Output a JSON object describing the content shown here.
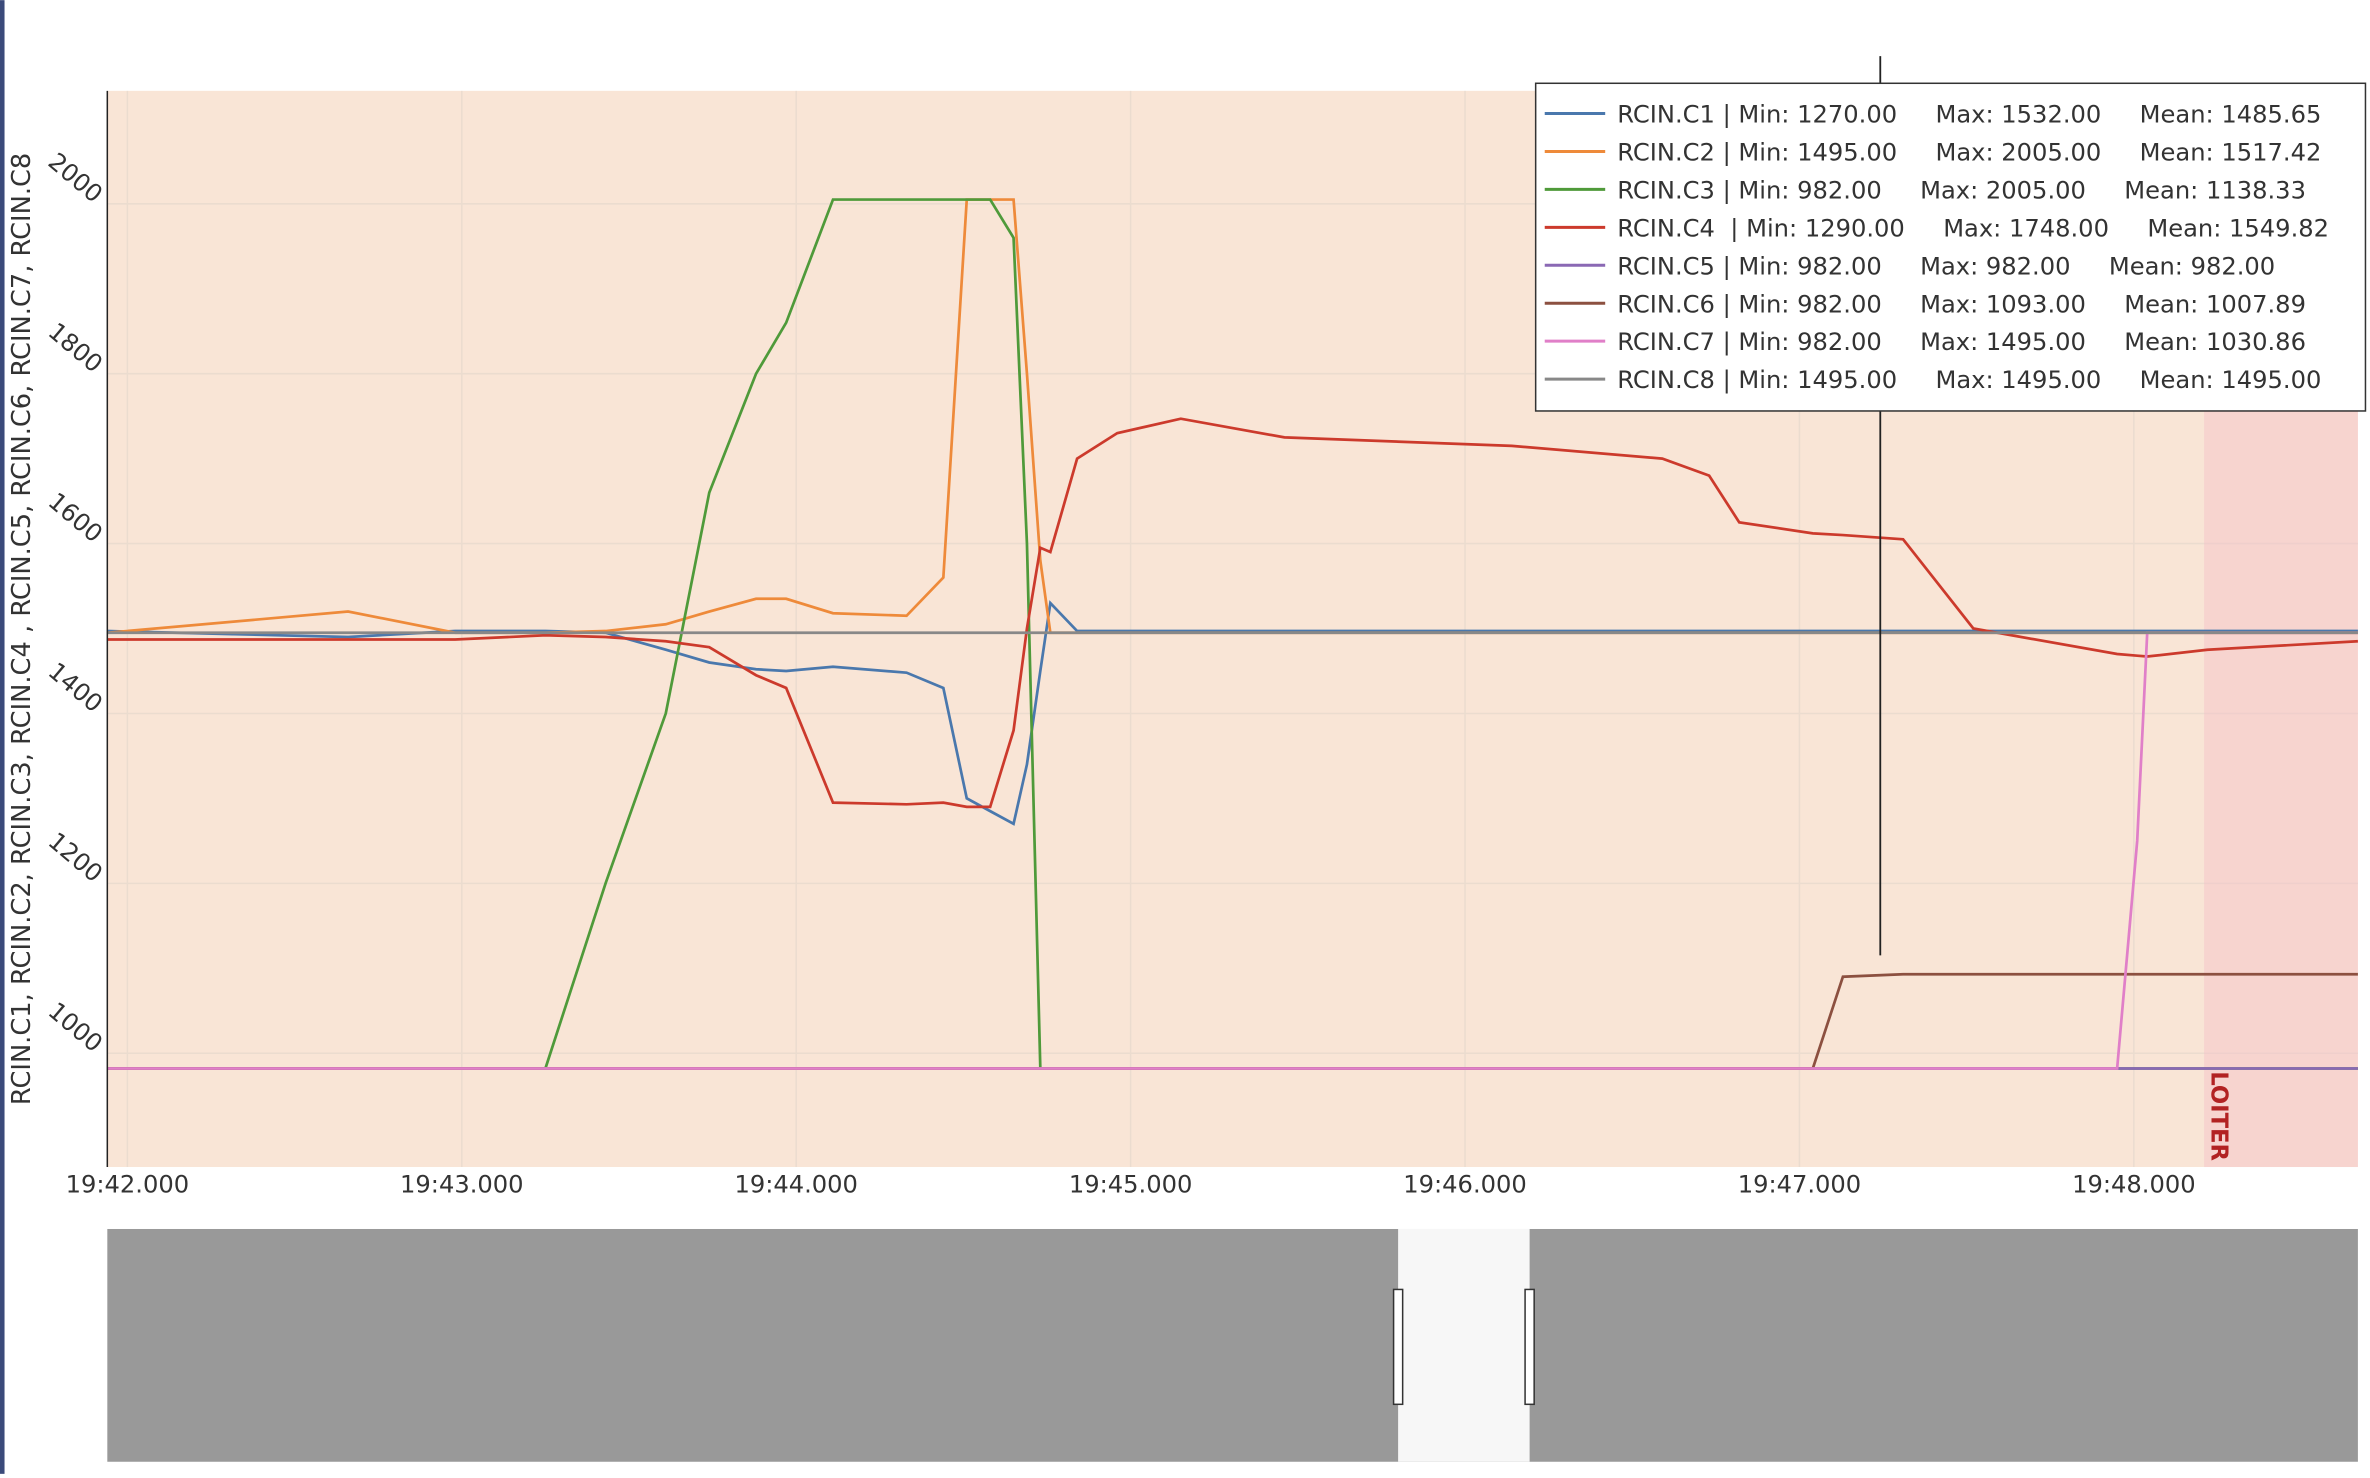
{
  "chart_data": {
    "type": "line",
    "y_label": "RCIN.C1, RCIN.C2, RCIN.C3, RCIN.C4 , RCIN.C5, RCIN.C6, RCIN.C7, RCIN.C8",
    "x": [
      1181.94,
      1182.66,
      1182.98,
      1183.25,
      1183.43,
      1183.61,
      1183.74,
      1183.88,
      1183.97,
      1184.11,
      1184.33,
      1184.44,
      1184.51,
      1184.58,
      1184.65,
      1184.69,
      1184.73,
      1184.76,
      1184.84,
      1184.96,
      1185.15,
      1185.46,
      1186.14,
      1186.59,
      1186.73,
      1186.82,
      1187.04,
      1187.13,
      1187.31,
      1187.52,
      1187.95,
      1188.01,
      1188.04,
      1188.22,
      1188.67
    ],
    "series": [
      {
        "name": "RCIN.C1 | Min: 1270.00     Max: 1532.00     Mean: 1485.65",
        "color": "#4a78ad",
        "values": [
          1497,
          1490,
          1497,
          1497,
          1495,
          1475,
          1460,
          1452,
          1450,
          1455,
          1448,
          1430,
          1300,
          1285,
          1270,
          1340,
          1450,
          1530,
          1497,
          1497,
          1497,
          1497,
          1497,
          1497,
          1497,
          1497,
          1497,
          1497,
          1497,
          1497,
          1497,
          1497,
          1497,
          1497,
          1497
        ]
      },
      {
        "name": "RCIN.C2 | Min: 1495.00     Max: 2005.00     Mean: 1517.42",
        "color": "#ee8a3a",
        "values": [
          1495,
          1520,
          1495,
          1495,
          1497,
          1505,
          1520,
          1535,
          1535,
          1518,
          1515,
          1560,
          2005,
          2005,
          2005,
          1800,
          1580,
          1495,
          1495,
          1495,
          1495,
          1495,
          1495,
          1495,
          1495,
          1495,
          1495,
          1495,
          1495,
          1495,
          1495,
          1495,
          1495,
          1495,
          1495
        ]
      },
      {
        "name": "RCIN.C3 | Min: 982.00     Max: 2005.00     Mean: 1138.33",
        "color": "#4f9a3a",
        "values": [
          982,
          982,
          982,
          982,
          1200,
          1400,
          1660,
          1800,
          1860,
          2005,
          2005,
          2005,
          2005,
          2005,
          1960,
          1600,
          982,
          982,
          982,
          982,
          982,
          982,
          982,
          982,
          982,
          982,
          982,
          982,
          982,
          982,
          982,
          982,
          982,
          982,
          982
        ]
      },
      {
        "name": "RCIN.C4  | Min: 1290.00     Max: 1748.00     Mean: 1549.82",
        "color": "#cc3a2c",
        "values": [
          1487,
          1487,
          1487,
          1492,
          1490,
          1485,
          1478,
          1445,
          1430,
          1295,
          1293,
          1295,
          1290,
          1290,
          1380,
          1500,
          1595,
          1590,
          1700,
          1730,
          1747,
          1725,
          1715,
          1700,
          1680,
          1625,
          1612,
          1610,
          1605,
          1500,
          1470,
          1468,
          1467,
          1475,
          1485
        ]
      },
      {
        "name": "RCIN.C5 | Min: 982.00     Max: 982.00     Mean: 982.00",
        "color": "#8a68b4",
        "values": [
          982,
          982,
          982,
          982,
          982,
          982,
          982,
          982,
          982,
          982,
          982,
          982,
          982,
          982,
          982,
          982,
          982,
          982,
          982,
          982,
          982,
          982,
          982,
          982,
          982,
          982,
          982,
          982,
          982,
          982,
          982,
          982,
          982,
          982,
          982
        ]
      },
      {
        "name": "RCIN.C6 | Min: 982.00     Max: 1093.00     Mean: 1007.89",
        "color": "#8c5040",
        "values": [
          982,
          982,
          982,
          982,
          982,
          982,
          982,
          982,
          982,
          982,
          982,
          982,
          982,
          982,
          982,
          982,
          982,
          982,
          982,
          982,
          982,
          982,
          982,
          982,
          982,
          982,
          982,
          1090,
          1093,
          1093,
          1093,
          1093,
          1093,
          1093,
          1093
        ]
      },
      {
        "name": "RCIN.C7 | Min: 982.00     Max: 1495.00     Mean: 1030.86",
        "color": "#e07fc8",
        "values": [
          982,
          982,
          982,
          982,
          982,
          982,
          982,
          982,
          982,
          982,
          982,
          982,
          982,
          982,
          982,
          982,
          982,
          982,
          982,
          982,
          982,
          982,
          982,
          982,
          982,
          982,
          982,
          982,
          982,
          982,
          982,
          1250,
          1495,
          1495,
          1495
        ]
      },
      {
        "name": "RCIN.C8 | Min: 1495.00     Max: 1495.00     Mean: 1495.00",
        "color": "#888888",
        "values": [
          1495,
          1495,
          1495,
          1495,
          1495,
          1495,
          1495,
          1495,
          1495,
          1495,
          1495,
          1495,
          1495,
          1495,
          1495,
          1495,
          1495,
          1495,
          1495,
          1495,
          1495,
          1495,
          1495,
          1495,
          1495,
          1495,
          1495,
          1495,
          1495,
          1495,
          1495,
          1495,
          1495,
          1495,
          1495
        ]
      }
    ],
    "xlim": [
      1181.94,
      1188.67
    ],
    "xticks": [
      {
        "value": 1182,
        "label": "19:42.000"
      },
      {
        "value": 1183,
        "label": "19:43.000"
      },
      {
        "value": 1184,
        "label": "19:44.000"
      },
      {
        "value": 1185,
        "label": "19:45.000"
      },
      {
        "value": 1186,
        "label": "19:46.000"
      },
      {
        "value": 1187,
        "label": "19:47.000"
      },
      {
        "value": 1188,
        "label": "19:48.000"
      }
    ],
    "ylim": [
      866,
      2133
    ],
    "yticks": [
      1000,
      1200,
      1400,
      1600,
      1800,
      2000
    ],
    "grid": true,
    "legend": "top-right",
    "annotations": [
      {
        "text": "LOITER",
        "x": 1188.21
      }
    ]
  }
}
